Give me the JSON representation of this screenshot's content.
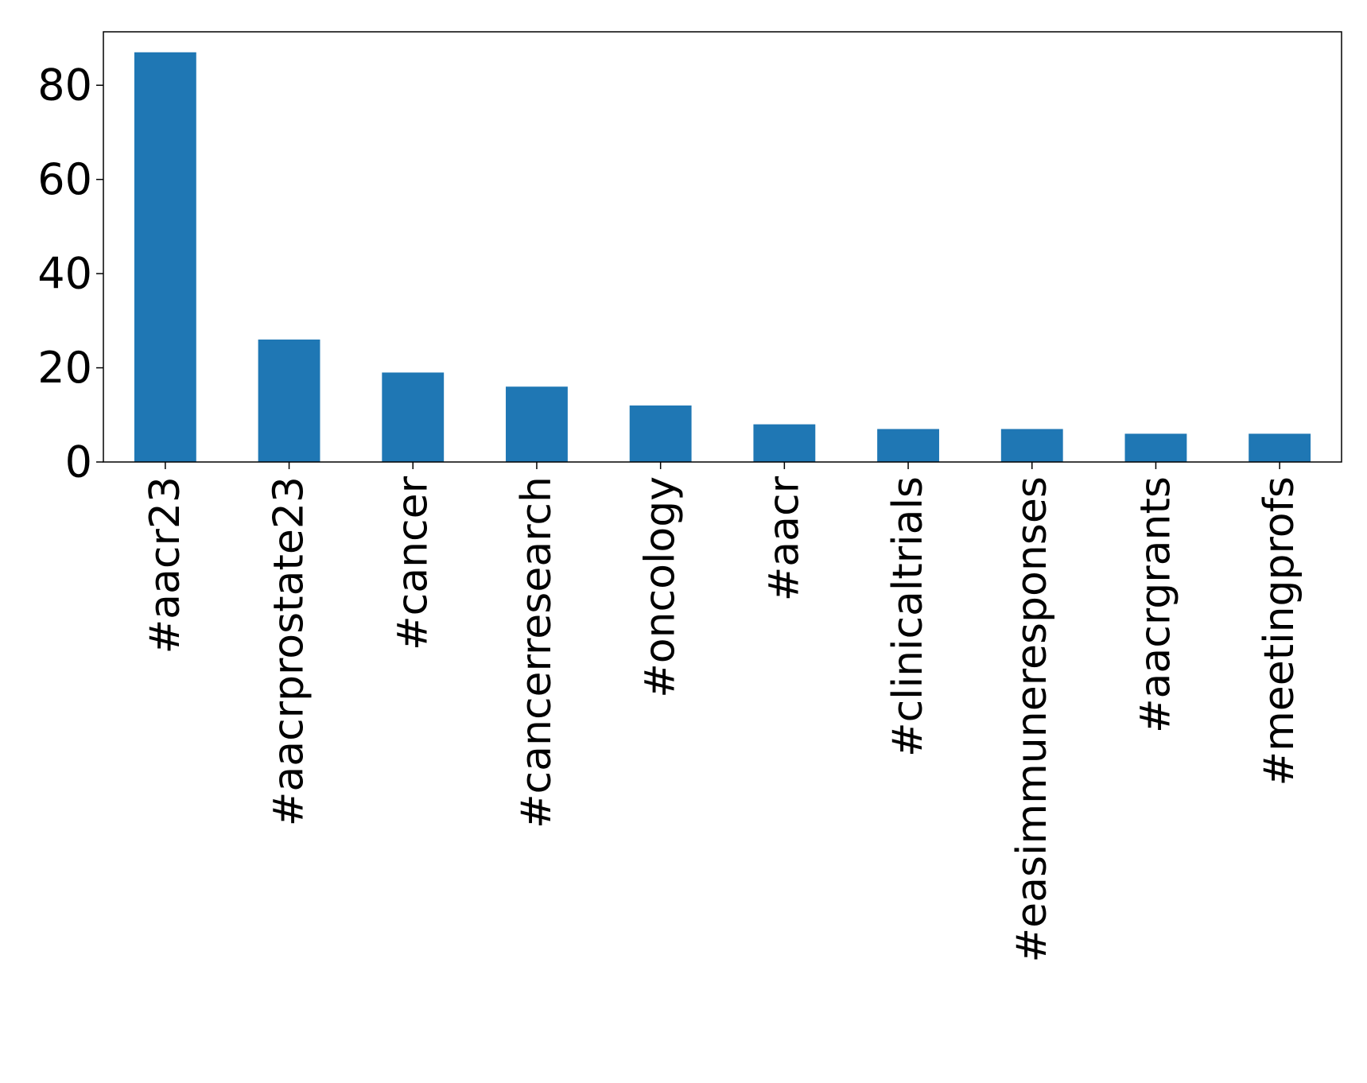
{
  "chart_data": {
    "type": "bar",
    "title": "",
    "xlabel": "",
    "ylabel": "",
    "categories": [
      "#aacr23",
      "#aacrprostate23",
      "#cancer",
      "#cancerresearch",
      "#oncology",
      "#aacr",
      "#clinicaltrials",
      "#easimmuneresponses",
      "#aacrgrants",
      "#meetingprofs"
    ],
    "values": [
      87,
      26,
      19,
      16,
      12,
      8,
      7,
      7,
      6,
      6
    ],
    "ylim": [
      0,
      91.35
    ],
    "yticks": [
      0,
      20,
      40,
      60,
      80
    ],
    "grid": false,
    "legend": "none",
    "bar_color": "#1f77b4",
    "axis_color": "#000000"
  }
}
